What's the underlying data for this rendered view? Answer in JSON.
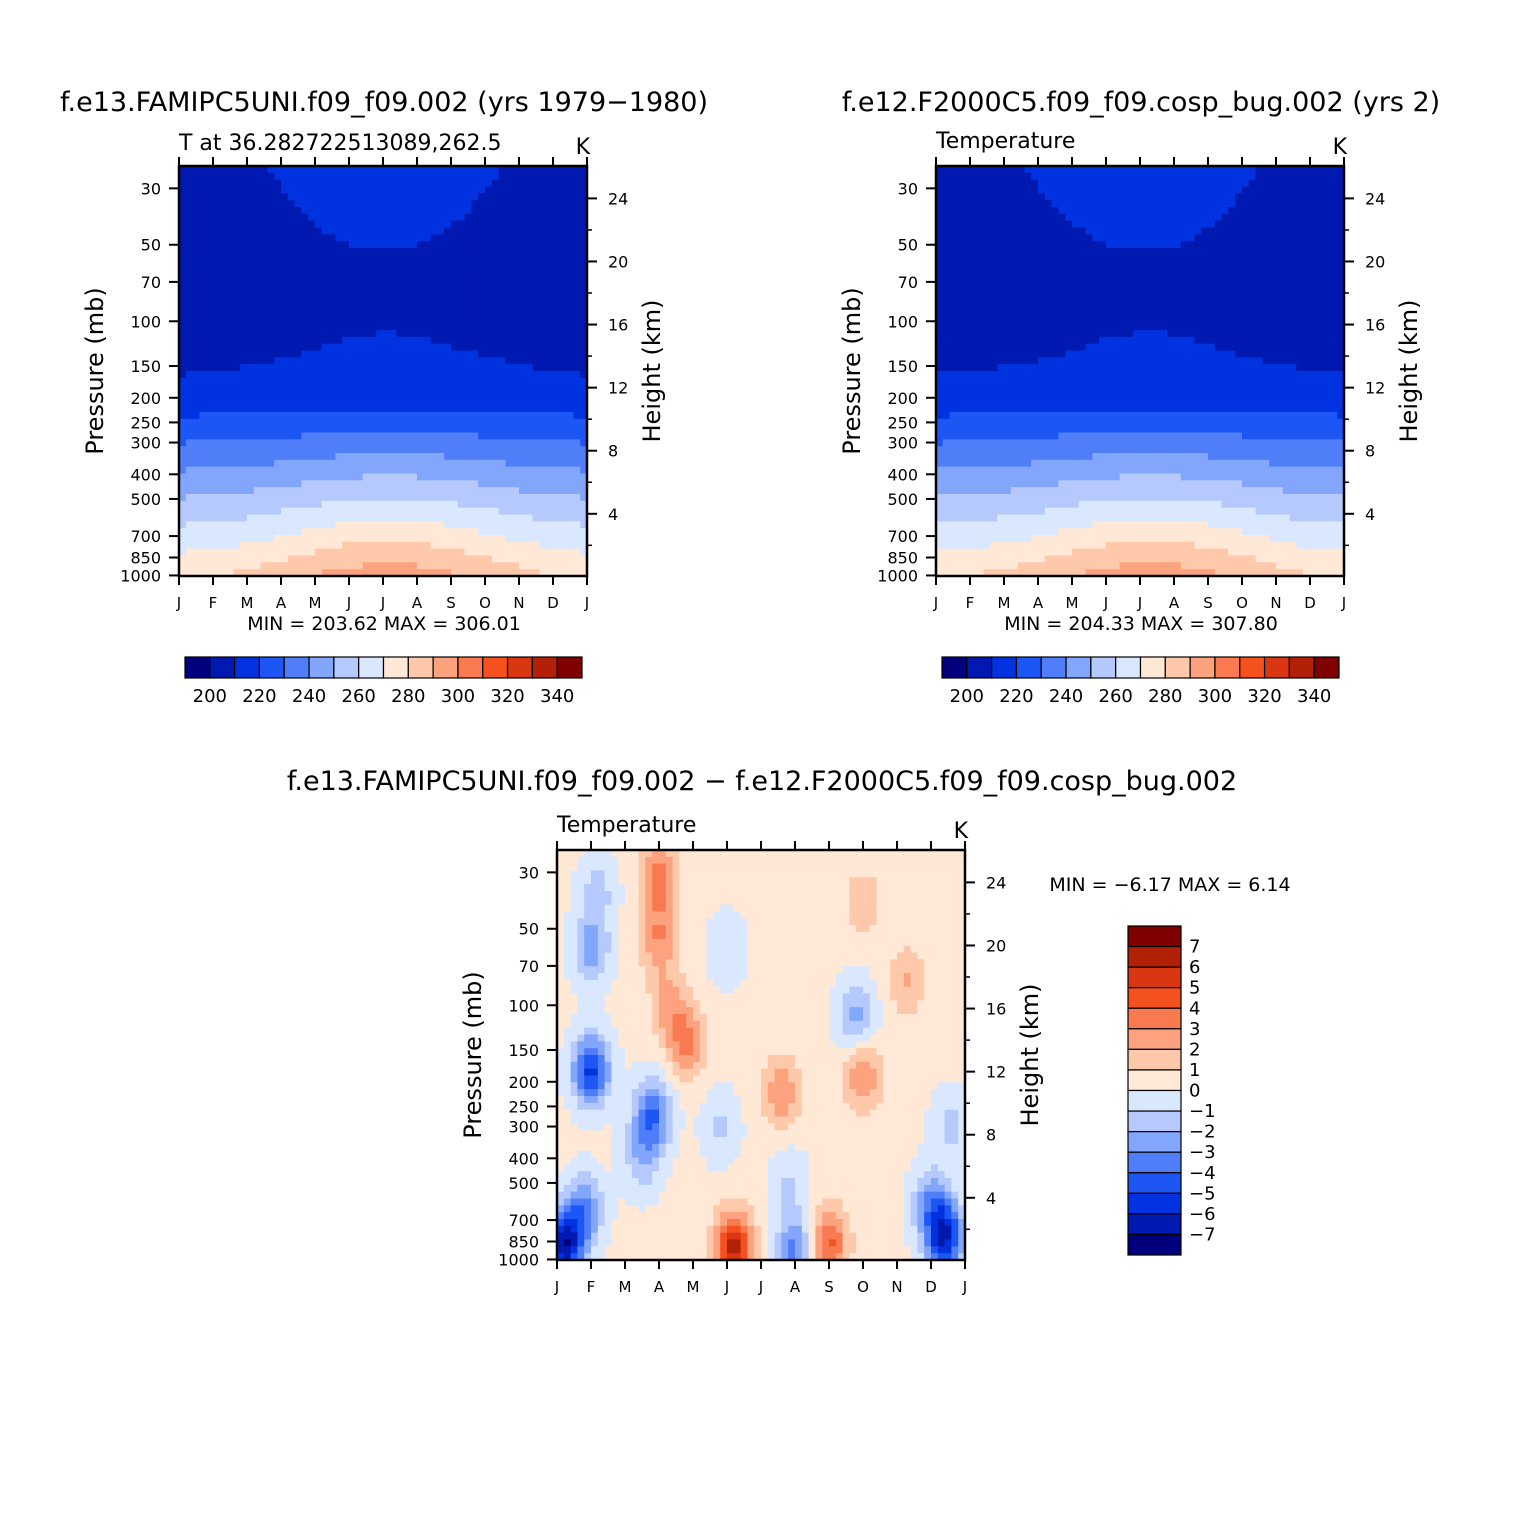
{
  "panels": [
    {
      "title": "f.e13.FAMIPC5UNI.f09_f09.002 (yrs 1979−1980)",
      "left_label": "T at 36.282722513089,262.5",
      "unit_label": "K",
      "minmax": "MIN = 203.62 MAX = 306.01"
    },
    {
      "title": "f.e12.F2000C5.f09_f09.cosp_bug.002 (yrs 2)",
      "left_label": "Temperature",
      "unit_label": "K",
      "minmax": "MIN = 204.33 MAX = 307.80"
    },
    {
      "title": "f.e13.FAMIPC5UNI.f09_f09.002 − f.e12.F2000C5.f09_f09.cosp_bug.002",
      "left_label": "Temperature",
      "unit_label": "K",
      "minmax": "MIN = −6.17 MAX = 6.14"
    }
  ],
  "chart_data": [
    {
      "type": "heatmap",
      "title": "f.e13.FAMIPC5UNI.f09_f09.002 (yrs 1979−1980)",
      "x": [
        "J",
        "F",
        "M",
        "A",
        "M",
        "J",
        "J",
        "A",
        "S",
        "O",
        "N",
        "D",
        "J"
      ],
      "y_pressure_ticks": [
        30,
        50,
        70,
        100,
        150,
        200,
        250,
        300,
        400,
        500,
        700,
        850,
        1000
      ],
      "y_height_ticks": [
        4,
        8,
        12,
        16,
        20,
        24
      ],
      "ylabel": "Pressure (mb)",
      "ylabel_right": "Height (km)",
      "min": 203.62,
      "max": 306.01,
      "colorbar_levels": [
        190,
        200,
        210,
        220,
        230,
        240,
        250,
        260,
        270,
        280,
        290,
        300,
        310,
        320,
        330,
        340,
        350
      ],
      "colorbar_tick_labels": [
        "200",
        "220",
        "240",
        "260",
        "280",
        "300",
        "320",
        "340"
      ],
      "colorbar_colors": [
        "#00007f",
        "#0019b0",
        "#0033df",
        "#1c57f5",
        "#4f7ef8",
        "#82a6fb",
        "#b5c9fc",
        "#d9e8ff",
        "#ffe8d5",
        "#fec9aa",
        "#fca27f",
        "#f97a51",
        "#f4511e",
        "#d93612",
        "#b22007",
        "#7f0000"
      ],
      "seasonal_shift": [
        -10.2,
        -8.9,
        -6.1,
        -2.6,
        1.8,
        5.6,
        6.9,
        6.1,
        3.2,
        -0.7,
        -5.0,
        -8.6,
        -10.2
      ]
    },
    {
      "type": "heatmap",
      "title": "f.e12.F2000C5.f09_f09.cosp_bug.002 (yrs 2)",
      "x": [
        "J",
        "F",
        "M",
        "A",
        "M",
        "J",
        "J",
        "A",
        "S",
        "O",
        "N",
        "D",
        "J"
      ],
      "y_pressure_ticks": [
        30,
        50,
        70,
        100,
        150,
        200,
        250,
        300,
        400,
        500,
        700,
        850,
        1000
      ],
      "y_height_ticks": [
        4,
        8,
        12,
        16,
        20,
        24
      ],
      "ylabel": "Pressure (mb)",
      "ylabel_right": "Height (km)",
      "min": 204.33,
      "max": 307.8,
      "colorbar_levels": [
        190,
        200,
        210,
        220,
        230,
        240,
        250,
        260,
        270,
        280,
        290,
        300,
        310,
        320,
        330,
        340,
        350
      ],
      "colorbar_tick_labels": [
        "200",
        "220",
        "240",
        "260",
        "280",
        "300",
        "320",
        "340"
      ],
      "colorbar_colors": [
        "#00007f",
        "#0019b0",
        "#0033df",
        "#1c57f5",
        "#4f7ef8",
        "#82a6fb",
        "#b5c9fc",
        "#d9e8ff",
        "#ffe8d5",
        "#fec9aa",
        "#fca27f",
        "#f97a51",
        "#f4511e",
        "#d93612",
        "#b22007",
        "#7f0000"
      ],
      "seasonal_shift": [
        -10.0,
        -8.7,
        -6.0,
        -2.7,
        1.5,
        5.3,
        7.0,
        6.8,
        3.8,
        -0.3,
        -4.6,
        -8.3,
        -10.0
      ]
    },
    {
      "type": "heatmap",
      "title": "f.e13.FAMIPC5UNI.f09_f09.002 − f.e12.F2000C5.f09_f09.cosp_bug.002",
      "x": [
        "J",
        "F",
        "M",
        "A",
        "M",
        "J",
        "J",
        "A",
        "S",
        "O",
        "N",
        "D",
        "J"
      ],
      "y_pressure_ticks": [
        30,
        50,
        70,
        100,
        150,
        200,
        250,
        300,
        400,
        500,
        700,
        850,
        1000
      ],
      "y_height_ticks": [
        4,
        8,
        12,
        16,
        20,
        24
      ],
      "ylabel": "Pressure (mb)",
      "ylabel_right": "Height (km)",
      "min": -6.17,
      "max": 6.14,
      "colorbar_levels": [
        -8,
        -7,
        -6,
        -5,
        -4,
        -3,
        -2,
        -1,
        0,
        1,
        2,
        3,
        4,
        5,
        6,
        7,
        8
      ],
      "colorbar_tick_labels": [
        "7",
        "6",
        "5",
        "4",
        "3",
        "2",
        "1",
        "0",
        "−1",
        "−2",
        "−3",
        "−4",
        "−5",
        "−6",
        "−7"
      ],
      "colorbar_colors": [
        "#00007f",
        "#0019b0",
        "#0033df",
        "#1c57f5",
        "#4f7ef8",
        "#82a6fb",
        "#b5c9fc",
        "#d9e8ff",
        "#ffe8d5",
        "#fec9aa",
        "#fca27f",
        "#f97a51",
        "#f4511e",
        "#d93612",
        "#b22007",
        "#7f0000"
      ],
      "anomaly_blobs": [
        {
          "month": 0.2,
          "p": 880,
          "amp": -7.0
        },
        {
          "month": 0.8,
          "p": 640,
          "amp": -3.5
        },
        {
          "month": 1.0,
          "p": 180,
          "amp": -5.5
        },
        {
          "month": 1.0,
          "p": 60,
          "amp": -2.8
        },
        {
          "month": 1.2,
          "p": 35,
          "amp": -1.6
        },
        {
          "month": 2.8,
          "p": 270,
          "amp": -4.2
        },
        {
          "month": 2.5,
          "p": 400,
          "amp": -2.0
        },
        {
          "month": 3.0,
          "p": 32,
          "amp": 3.2
        },
        {
          "month": 3.0,
          "p": 55,
          "amp": 2.6
        },
        {
          "month": 3.8,
          "p": 140,
          "amp": 3.0
        },
        {
          "month": 3.3,
          "p": 100,
          "amp": 2.0
        },
        {
          "month": 4.8,
          "p": 300,
          "amp": -1.4
        },
        {
          "month": 5.0,
          "p": 60,
          "amp": -1.2
        },
        {
          "month": 5.2,
          "p": 900,
          "amp": 6.1
        },
        {
          "month": 6.6,
          "p": 220,
          "amp": 2.6
        },
        {
          "month": 6.8,
          "p": 500,
          "amp": -1.3
        },
        {
          "month": 7.0,
          "p": 930,
          "amp": -3.6
        },
        {
          "month": 8.0,
          "p": 860,
          "amp": 4.0
        },
        {
          "month": 8.8,
          "p": 110,
          "amp": -2.6
        },
        {
          "month": 9.0,
          "p": 190,
          "amp": 2.8
        },
        {
          "month": 9.0,
          "p": 40,
          "amp": 1.6
        },
        {
          "month": 10.3,
          "p": 80,
          "amp": 1.8
        },
        {
          "month": 11.4,
          "p": 820,
          "amp": -6.2
        },
        {
          "month": 11.0,
          "p": 600,
          "amp": -3.0
        },
        {
          "month": 11.6,
          "p": 300,
          "amp": -1.5
        }
      ]
    }
  ]
}
